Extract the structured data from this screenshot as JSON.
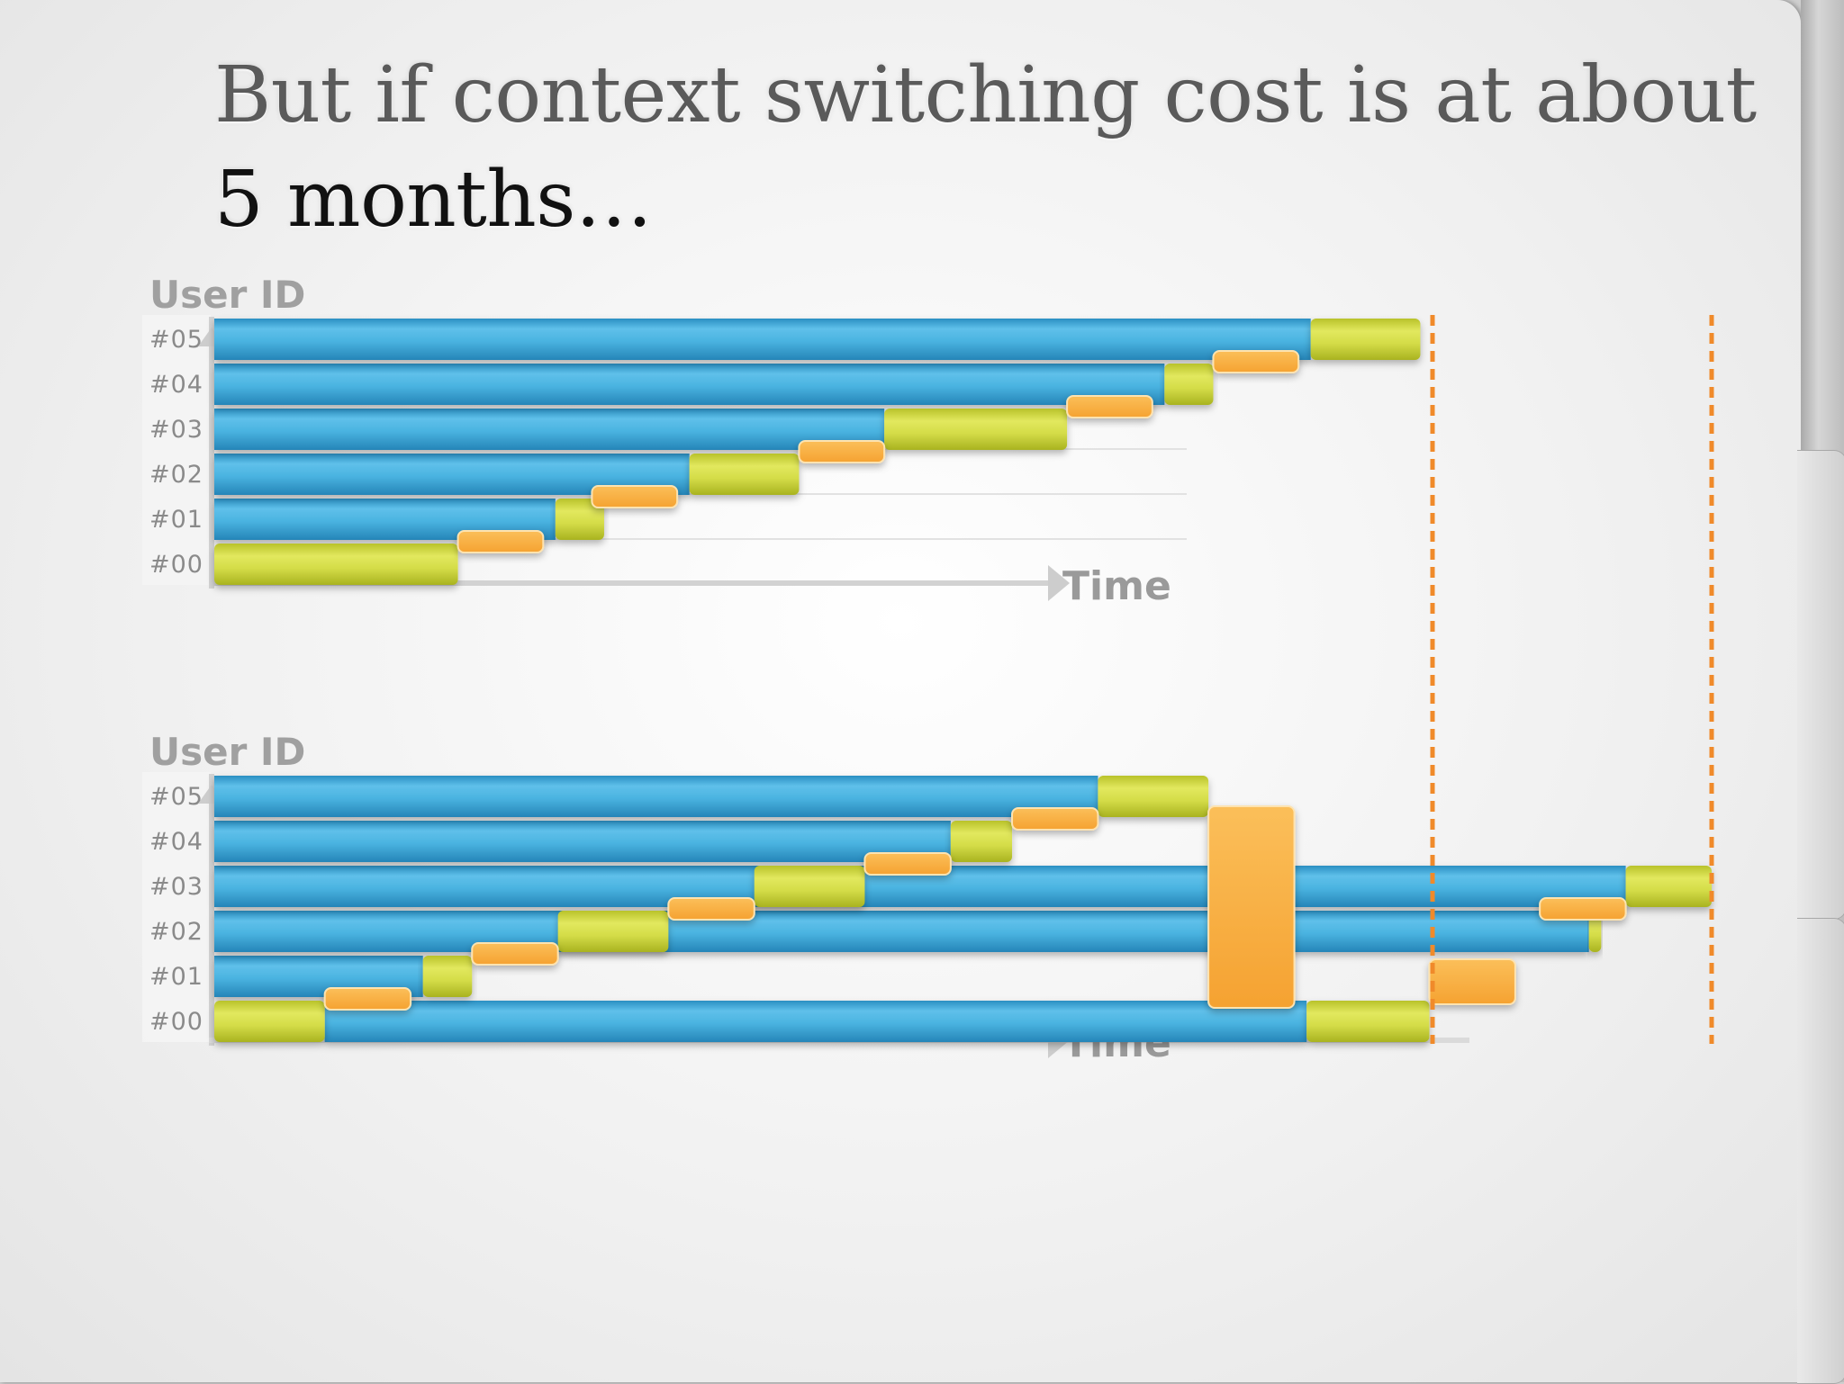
{
  "slide": {
    "title_line1": "But if context switching cost is at about",
    "title_line2": "5 months…"
  },
  "colors": {
    "work_blue": "#4ab3e0",
    "task_yellow": "#d4dc48",
    "switch_orange": "#f8aa3a",
    "marker_orange": "#f08a2a",
    "axis_gray": "#cfcfcf"
  },
  "chart_data": [
    {
      "type": "gantt",
      "title": "",
      "ylabel": "User ID",
      "xlabel": "Time",
      "y_categories": [
        "#00",
        "#01",
        "#02",
        "#03",
        "#04",
        "#05"
      ],
      "time_range": [
        0,
        100
      ],
      "waiting": [
        {
          "user": "#01",
          "start": 0,
          "end": 28
        },
        {
          "user": "#02",
          "start": 0,
          "end": 39
        },
        {
          "user": "#03",
          "start": 0,
          "end": 55
        },
        {
          "user": "#04",
          "start": 0,
          "end": 78
        },
        {
          "user": "#05",
          "start": 0,
          "end": 90
        }
      ],
      "tasks": [
        {
          "user": "#00",
          "start": 0,
          "end": 20
        },
        {
          "user": "#01",
          "start": 28,
          "end": 32
        },
        {
          "user": "#02",
          "start": 39,
          "end": 48
        },
        {
          "user": "#03",
          "start": 55,
          "end": 70
        },
        {
          "user": "#04",
          "start": 78,
          "end": 82
        },
        {
          "user": "#05",
          "start": 90,
          "end": 99
        }
      ],
      "switches": [
        {
          "between": [
            "#00",
            "#01"
          ],
          "start": 20,
          "end": 27
        },
        {
          "between": [
            "#01",
            "#02"
          ],
          "start": 31,
          "end": 38
        },
        {
          "between": [
            "#02",
            "#03"
          ],
          "start": 48,
          "end": 55
        },
        {
          "between": [
            "#03",
            "#04"
          ],
          "start": 70,
          "end": 77
        },
        {
          "between": [
            "#04",
            "#05"
          ],
          "start": 82,
          "end": 89
        }
      ]
    },
    {
      "type": "gantt",
      "title": "",
      "ylabel": "User ID",
      "xlabel": "Time",
      "y_categories": [
        "#00",
        "#01",
        "#02",
        "#03",
        "#04",
        "#05"
      ],
      "time_range": [
        0,
        122
      ],
      "waiting": [
        {
          "user": "#00",
          "start": 9,
          "end": 89
        },
        {
          "user": "#01",
          "start": 0,
          "end": 17
        },
        {
          "user": "#02",
          "start": 0,
          "end": 112
        },
        {
          "user": "#03",
          "start": 0,
          "end": 115
        },
        {
          "user": "#04",
          "start": 0,
          "end": 60
        },
        {
          "user": "#05",
          "start": 0,
          "end": 72
        }
      ],
      "tasks": [
        {
          "user": "#00",
          "start": 0,
          "end": 9
        },
        {
          "user": "#01",
          "start": 17,
          "end": 21
        },
        {
          "user": "#02",
          "start": 28,
          "end": 37
        },
        {
          "user": "#03",
          "start": 44,
          "end": 53
        },
        {
          "user": "#04",
          "start": 60,
          "end": 65
        },
        {
          "user": "#05",
          "start": 72,
          "end": 81
        },
        {
          "user": "#00",
          "start": 89,
          "end": 99
        },
        {
          "user": "#02",
          "start": 112,
          "end": 113
        },
        {
          "user": "#03",
          "start": 115,
          "end": 122
        }
      ],
      "switches": [
        {
          "between": [
            "#00",
            "#01"
          ],
          "start": 9,
          "end": 16
        },
        {
          "between": [
            "#01",
            "#02"
          ],
          "start": 21,
          "end": 28
        },
        {
          "between": [
            "#02",
            "#03"
          ],
          "start": 37,
          "end": 44
        },
        {
          "between": [
            "#03",
            "#04"
          ],
          "start": 53,
          "end": 60
        },
        {
          "between": [
            "#04",
            "#05"
          ],
          "start": 65,
          "end": 72
        },
        {
          "between": [
            "#05",
            "#00"
          ],
          "start": 81,
          "end": 88
        },
        {
          "between": [
            "#00",
            "#02"
          ],
          "start": 99,
          "end": 106
        },
        {
          "between": [
            "#02",
            "#03"
          ],
          "start": 108,
          "end": 115
        }
      ]
    }
  ]
}
